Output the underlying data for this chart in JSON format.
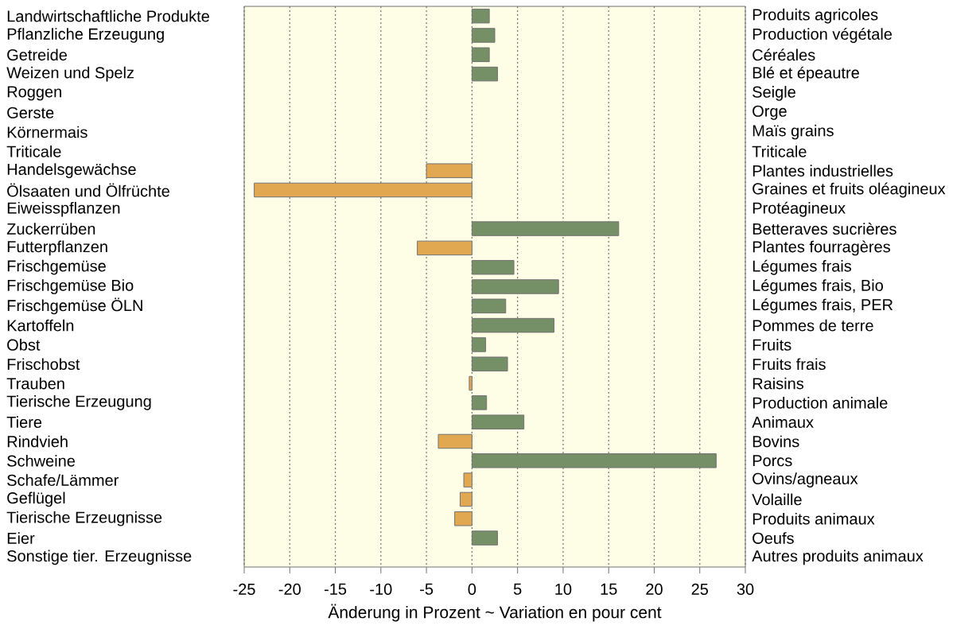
{
  "chart_data": {
    "type": "bar",
    "orientation": "horizontal",
    "categories": [
      "Landwirtschaftliche Produkte",
      "Pflanzliche Erzeugung",
      "Getreide",
      "Weizen und Spelz",
      "Roggen",
      "Gerste",
      "Körnermais",
      "Triticale",
      "Handelsgewächse",
      "Ölsaaten und Ölfrüchte",
      "Eiweisspflanzen",
      "Zuckerrüben",
      "Futterpflanzen",
      "Frischgemüse",
      "Frischgemüse Bio",
      "Frischgemüse ÖLN",
      "Kartoffeln",
      "Obst",
      "Frischobst",
      "Trauben",
      "Tierische Erzeugung",
      "Tiere",
      "Rindvieh",
      "Schweine",
      "Schafe/Lämmer",
      "Geflügel",
      "Tierische Erzeugnisse",
      "Eier",
      "Sonstige tier. Erzeugnisse"
    ],
    "y2_categories": [
      "Produits agricoles",
      "Production végétale",
      "Céréales",
      "Blé et épeautre",
      "Seigle",
      "Orge",
      "Maïs grains",
      "Triticale",
      "Plantes industrielles",
      "Graines et fruits oléagineux",
      "Protéagineux",
      "Betteraves sucrières",
      "Plantes fourragères",
      "Légumes frais",
      "Légumes frais, Bio",
      "Légumes frais, PER",
      "Pommes de terre",
      "Fruits",
      "Fruits frais",
      "Raisins",
      "Production animale",
      "Animaux",
      "Bovins",
      "Porcs",
      "Ovins/agneaux",
      "Volaille",
      "Produits animaux",
      "Oeufs",
      "Autres produits animaux"
    ],
    "values": [
      1.9,
      2.5,
      1.9,
      2.8,
      0,
      0,
      0,
      0,
      -5.0,
      -23.9,
      0,
      16.1,
      -6.0,
      4.6,
      9.5,
      3.7,
      9.0,
      1.5,
      3.9,
      -0.3,
      1.6,
      5.7,
      -3.7,
      26.8,
      -0.9,
      -1.3,
      -1.9,
      2.8,
      0
    ],
    "colors": [
      "#758f66",
      "#758f66",
      "#758f66",
      "#758f66",
      "#758f66",
      "#758f66",
      "#758f66",
      "#758f66",
      "#e1a751",
      "#e1a751",
      "#758f66",
      "#758f66",
      "#e1a751",
      "#758f66",
      "#758f66",
      "#758f66",
      "#758f66",
      "#758f66",
      "#758f66",
      "#e1a751",
      "#758f66",
      "#758f66",
      "#e1a751",
      "#758f66",
      "#e1a751",
      "#e1a751",
      "#e1a751",
      "#758f66",
      "#758f66"
    ],
    "xlim": [
      -25,
      30
    ],
    "xticks": [
      -25,
      -20,
      -15,
      -10,
      -5,
      0,
      5,
      10,
      15,
      20,
      25,
      30
    ],
    "xlabel": "Änderung in Prozent   ~   Variation en pour cent",
    "grid": true
  }
}
